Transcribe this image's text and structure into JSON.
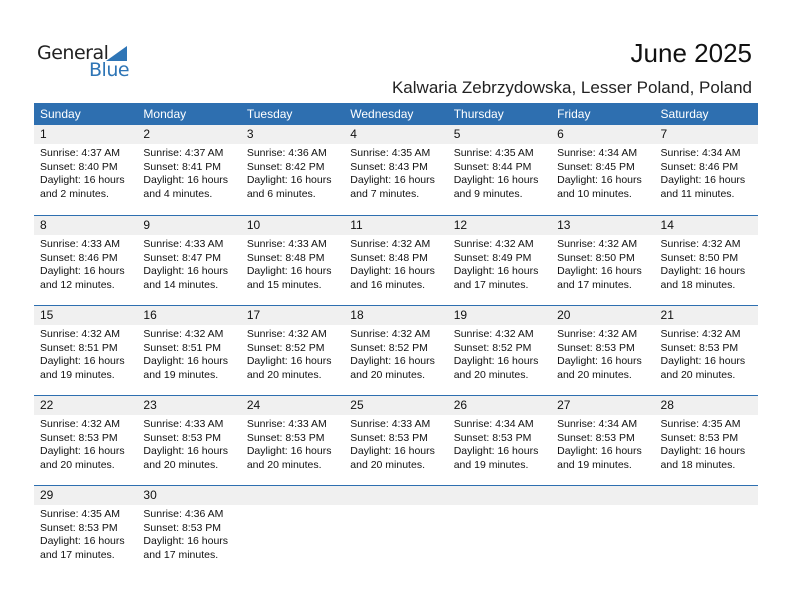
{
  "logo": {
    "line1": "General",
    "line2": "Blue"
  },
  "title": "June 2025",
  "location": "Kalwaria Zebrzydowska, Lesser Poland, Poland",
  "colors": {
    "header": "#2e6fb0",
    "accent": "#2e75b6",
    "daystrip": "#f0f0f0"
  },
  "weekdays": [
    "Sunday",
    "Monday",
    "Tuesday",
    "Wednesday",
    "Thursday",
    "Friday",
    "Saturday"
  ],
  "days": [
    {
      "day": "1",
      "sunrise": "Sunrise: 4:37 AM",
      "sunset": "Sunset: 8:40 PM",
      "daylight1": "Daylight: 16 hours",
      "daylight2": "and 2 minutes."
    },
    {
      "day": "2",
      "sunrise": "Sunrise: 4:37 AM",
      "sunset": "Sunset: 8:41 PM",
      "daylight1": "Daylight: 16 hours",
      "daylight2": "and 4 minutes."
    },
    {
      "day": "3",
      "sunrise": "Sunrise: 4:36 AM",
      "sunset": "Sunset: 8:42 PM",
      "daylight1": "Daylight: 16 hours",
      "daylight2": "and 6 minutes."
    },
    {
      "day": "4",
      "sunrise": "Sunrise: 4:35 AM",
      "sunset": "Sunset: 8:43 PM",
      "daylight1": "Daylight: 16 hours",
      "daylight2": "and 7 minutes."
    },
    {
      "day": "5",
      "sunrise": "Sunrise: 4:35 AM",
      "sunset": "Sunset: 8:44 PM",
      "daylight1": "Daylight: 16 hours",
      "daylight2": "and 9 minutes."
    },
    {
      "day": "6",
      "sunrise": "Sunrise: 4:34 AM",
      "sunset": "Sunset: 8:45 PM",
      "daylight1": "Daylight: 16 hours",
      "daylight2": "and 10 minutes."
    },
    {
      "day": "7",
      "sunrise": "Sunrise: 4:34 AM",
      "sunset": "Sunset: 8:46 PM",
      "daylight1": "Daylight: 16 hours",
      "daylight2": "and 11 minutes."
    },
    {
      "day": "8",
      "sunrise": "Sunrise: 4:33 AM",
      "sunset": "Sunset: 8:46 PM",
      "daylight1": "Daylight: 16 hours",
      "daylight2": "and 12 minutes."
    },
    {
      "day": "9",
      "sunrise": "Sunrise: 4:33 AM",
      "sunset": "Sunset: 8:47 PM",
      "daylight1": "Daylight: 16 hours",
      "daylight2": "and 14 minutes."
    },
    {
      "day": "10",
      "sunrise": "Sunrise: 4:33 AM",
      "sunset": "Sunset: 8:48 PM",
      "daylight1": "Daylight: 16 hours",
      "daylight2": "and 15 minutes."
    },
    {
      "day": "11",
      "sunrise": "Sunrise: 4:32 AM",
      "sunset": "Sunset: 8:48 PM",
      "daylight1": "Daylight: 16 hours",
      "daylight2": "and 16 minutes."
    },
    {
      "day": "12",
      "sunrise": "Sunrise: 4:32 AM",
      "sunset": "Sunset: 8:49 PM",
      "daylight1": "Daylight: 16 hours",
      "daylight2": "and 17 minutes."
    },
    {
      "day": "13",
      "sunrise": "Sunrise: 4:32 AM",
      "sunset": "Sunset: 8:50 PM",
      "daylight1": "Daylight: 16 hours",
      "daylight2": "and 17 minutes."
    },
    {
      "day": "14",
      "sunrise": "Sunrise: 4:32 AM",
      "sunset": "Sunset: 8:50 PM",
      "daylight1": "Daylight: 16 hours",
      "daylight2": "and 18 minutes."
    },
    {
      "day": "15",
      "sunrise": "Sunrise: 4:32 AM",
      "sunset": "Sunset: 8:51 PM",
      "daylight1": "Daylight: 16 hours",
      "daylight2": "and 19 minutes."
    },
    {
      "day": "16",
      "sunrise": "Sunrise: 4:32 AM",
      "sunset": "Sunset: 8:51 PM",
      "daylight1": "Daylight: 16 hours",
      "daylight2": "and 19 minutes."
    },
    {
      "day": "17",
      "sunrise": "Sunrise: 4:32 AM",
      "sunset": "Sunset: 8:52 PM",
      "daylight1": "Daylight: 16 hours",
      "daylight2": "and 20 minutes."
    },
    {
      "day": "18",
      "sunrise": "Sunrise: 4:32 AM",
      "sunset": "Sunset: 8:52 PM",
      "daylight1": "Daylight: 16 hours",
      "daylight2": "and 20 minutes."
    },
    {
      "day": "19",
      "sunrise": "Sunrise: 4:32 AM",
      "sunset": "Sunset: 8:52 PM",
      "daylight1": "Daylight: 16 hours",
      "daylight2": "and 20 minutes."
    },
    {
      "day": "20",
      "sunrise": "Sunrise: 4:32 AM",
      "sunset": "Sunset: 8:53 PM",
      "daylight1": "Daylight: 16 hours",
      "daylight2": "and 20 minutes."
    },
    {
      "day": "21",
      "sunrise": "Sunrise: 4:32 AM",
      "sunset": "Sunset: 8:53 PM",
      "daylight1": "Daylight: 16 hours",
      "daylight2": "and 20 minutes."
    },
    {
      "day": "22",
      "sunrise": "Sunrise: 4:32 AM",
      "sunset": "Sunset: 8:53 PM",
      "daylight1": "Daylight: 16 hours",
      "daylight2": "and 20 minutes."
    },
    {
      "day": "23",
      "sunrise": "Sunrise: 4:33 AM",
      "sunset": "Sunset: 8:53 PM",
      "daylight1": "Daylight: 16 hours",
      "daylight2": "and 20 minutes."
    },
    {
      "day": "24",
      "sunrise": "Sunrise: 4:33 AM",
      "sunset": "Sunset: 8:53 PM",
      "daylight1": "Daylight: 16 hours",
      "daylight2": "and 20 minutes."
    },
    {
      "day": "25",
      "sunrise": "Sunrise: 4:33 AM",
      "sunset": "Sunset: 8:53 PM",
      "daylight1": "Daylight: 16 hours",
      "daylight2": "and 20 minutes."
    },
    {
      "day": "26",
      "sunrise": "Sunrise: 4:34 AM",
      "sunset": "Sunset: 8:53 PM",
      "daylight1": "Daylight: 16 hours",
      "daylight2": "and 19 minutes."
    },
    {
      "day": "27",
      "sunrise": "Sunrise: 4:34 AM",
      "sunset": "Sunset: 8:53 PM",
      "daylight1": "Daylight: 16 hours",
      "daylight2": "and 19 minutes."
    },
    {
      "day": "28",
      "sunrise": "Sunrise: 4:35 AM",
      "sunset": "Sunset: 8:53 PM",
      "daylight1": "Daylight: 16 hours",
      "daylight2": "and 18 minutes."
    },
    {
      "day": "29",
      "sunrise": "Sunrise: 4:35 AM",
      "sunset": "Sunset: 8:53 PM",
      "daylight1": "Daylight: 16 hours",
      "daylight2": "and 17 minutes."
    },
    {
      "day": "30",
      "sunrise": "Sunrise: 4:36 AM",
      "sunset": "Sunset: 8:53 PM",
      "daylight1": "Daylight: 16 hours",
      "daylight2": "and 17 minutes."
    }
  ]
}
